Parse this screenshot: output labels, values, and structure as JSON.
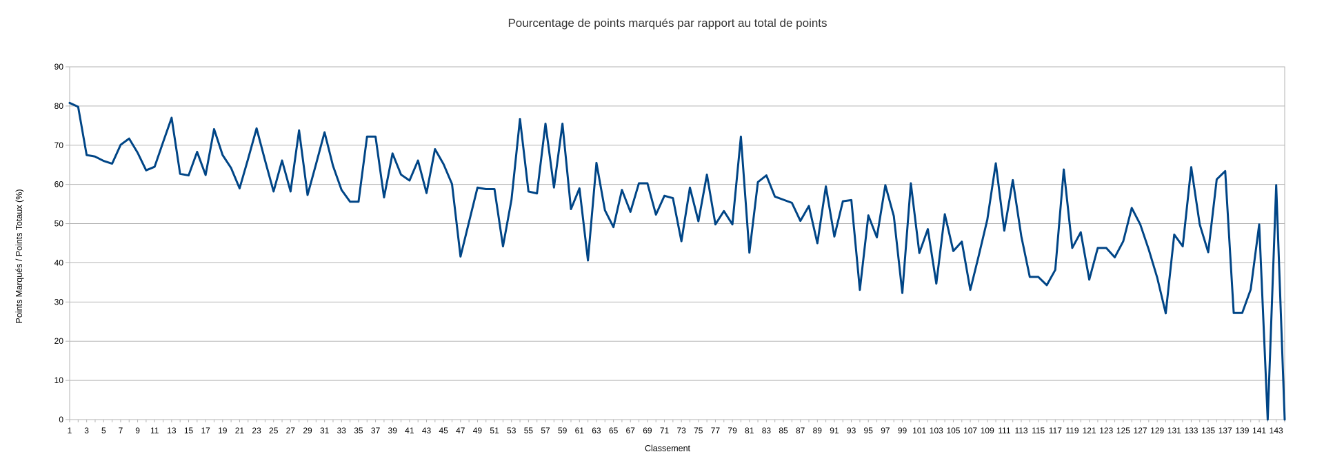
{
  "chart_data": {
    "type": "line",
    "title": "Pourcentage de points marqués par rapport au total de points",
    "xlabel": "Classement",
    "ylabel": "Points Marqués / Points Totaux (%)",
    "ylim": [
      0,
      90
    ],
    "yticks": [
      0,
      10,
      20,
      30,
      40,
      50,
      60,
      70,
      80,
      90
    ],
    "xlim": [
      1,
      144
    ],
    "xtick_step": 2,
    "grid": true,
    "legend": "none",
    "series": [
      {
        "color": "#004586",
        "x": [
          1,
          2,
          3,
          4,
          5,
          6,
          7,
          8,
          9,
          10,
          11,
          12,
          13,
          14,
          15,
          16,
          17,
          18,
          19,
          20,
          21,
          22,
          23,
          24,
          25,
          26,
          27,
          28,
          29,
          30,
          31,
          32,
          33,
          34,
          35,
          36,
          37,
          38,
          39,
          40,
          41,
          42,
          43,
          44,
          45,
          46,
          47,
          48,
          49,
          50,
          51,
          52,
          53,
          54,
          55,
          56,
          57,
          58,
          59,
          60,
          61,
          62,
          63,
          64,
          65,
          66,
          67,
          68,
          69,
          70,
          71,
          72,
          73,
          74,
          75,
          76,
          77,
          78,
          79,
          80,
          81,
          82,
          83,
          84,
          85,
          86,
          87,
          88,
          89,
          90,
          91,
          92,
          93,
          94,
          95,
          96,
          97,
          98,
          99,
          100,
          101,
          102,
          103,
          104,
          105,
          106,
          107,
          108,
          109,
          110,
          111,
          112,
          113,
          114,
          115,
          116,
          117,
          118,
          119,
          120,
          121,
          122,
          123,
          124,
          125,
          126,
          127,
          128,
          129,
          130,
          131,
          132,
          133,
          134,
          135,
          136,
          137,
          138,
          139,
          140,
          141,
          142,
          143,
          144
        ],
        "values": [
          80.8,
          79.8,
          67.5,
          67.1,
          66,
          65.3,
          70.1,
          71.7,
          68.1,
          63.6,
          64.5,
          70.8,
          77,
          62.7,
          62.3,
          68.3,
          62.4,
          74.1,
          67.5,
          64.2,
          59,
          66.5,
          74.3,
          66.1,
          58.2,
          66.1,
          58.2,
          73.8,
          57.3,
          65.2,
          73.3,
          64.7,
          58.6,
          55.6,
          55.6,
          72.2,
          72.2,
          56.7,
          67.9,
          62.5,
          61,
          66.1,
          57.8,
          69,
          65.2,
          60.1,
          41.6,
          50.4,
          59.2,
          58.8,
          58.8,
          44.2,
          56.1,
          76.7,
          58.2,
          57.7,
          75.5,
          59.2,
          75.5,
          53.7,
          59,
          40.6,
          65.5,
          53.4,
          49.1,
          58.6,
          53,
          60.3,
          60.3,
          52.3,
          57.1,
          56.5,
          45.5,
          59.2,
          50.6,
          62.5,
          49.8,
          53.2,
          49.8,
          72.2,
          42.6,
          60.6,
          62.3,
          56.9,
          56.1,
          55.3,
          50.7,
          54.5,
          45,
          59.5,
          46.7,
          55.7,
          56,
          33.1,
          52.1,
          46.5,
          59.8,
          51.9,
          32.3,
          60.3,
          42.5,
          48.6,
          34.7,
          52.4,
          43,
          45.4,
          33.1,
          41.9,
          51,
          65.4,
          48.2,
          61.1,
          46.8,
          36.4,
          36.4,
          34.3,
          38.2,
          63.8,
          43.8,
          47.8,
          35.7,
          43.8,
          43.8,
          41.4,
          45.5,
          54,
          49.8,
          43.4,
          36.2,
          27.1,
          47.2,
          44.2,
          64.4,
          49.8,
          42.7,
          61.3,
          63.4,
          27.2,
          27.2,
          33.2,
          49.8,
          0,
          59.8,
          0
        ]
      }
    ]
  }
}
